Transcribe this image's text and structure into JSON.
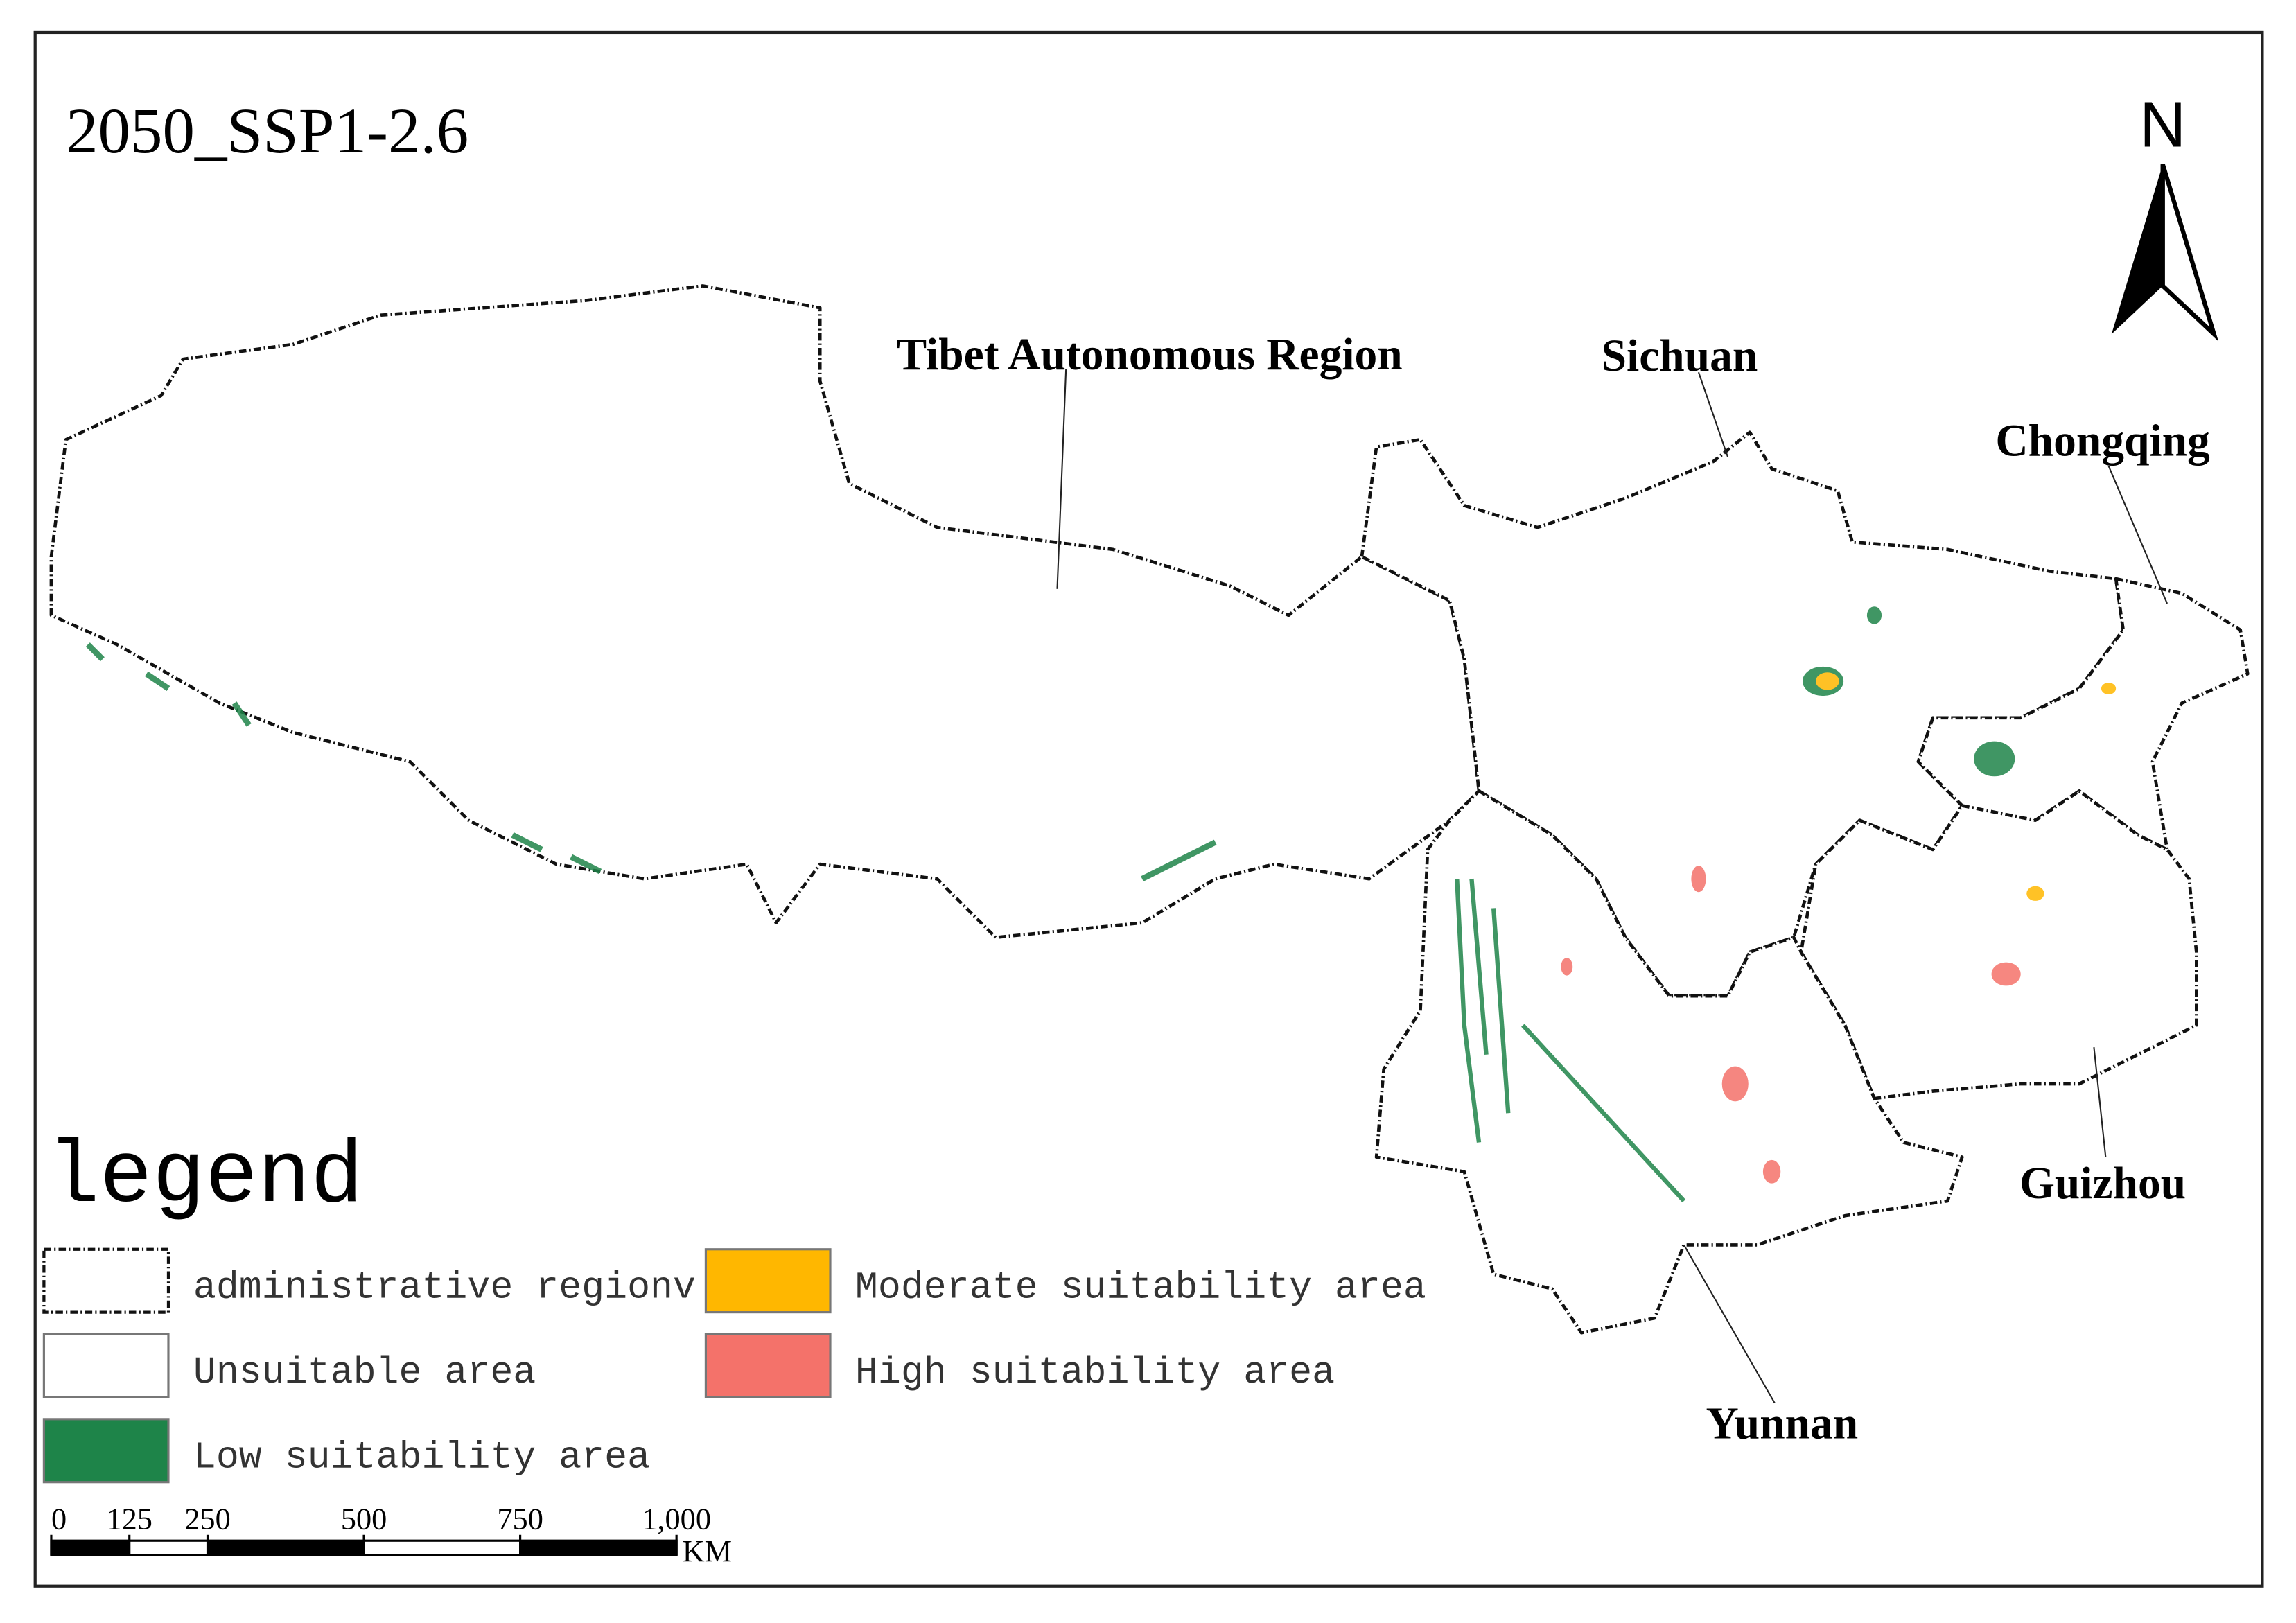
{
  "title": "2050_SSP1-2.6",
  "north": "N",
  "regions": [
    {
      "label": "Tibet Autonomous Region"
    },
    {
      "label": "Sichuan"
    },
    {
      "label": "Chongqing"
    },
    {
      "label": "Guizhou"
    },
    {
      "label": "Yunnan"
    }
  ],
  "legend": {
    "title": "legend",
    "items": [
      {
        "label": "administrative regionv",
        "color": "#ffffff",
        "style": "dashed"
      },
      {
        "label": "Unsuitable area",
        "color": "#ffffff",
        "style": "solid"
      },
      {
        "label": "Low suitability area",
        "color": "#1e8449",
        "style": "solid"
      },
      {
        "label": "Moderate suitability area",
        "color": "#ffb700",
        "style": "solid"
      },
      {
        "label": "High suitability area",
        "color": "#f4726a",
        "style": "solid"
      }
    ]
  },
  "scale_bar": {
    "ticks": [
      0,
      125,
      250,
      500,
      750,
      {
        "value": 1000,
        "label": "1,000"
      }
    ],
    "unit": "KM"
  }
}
